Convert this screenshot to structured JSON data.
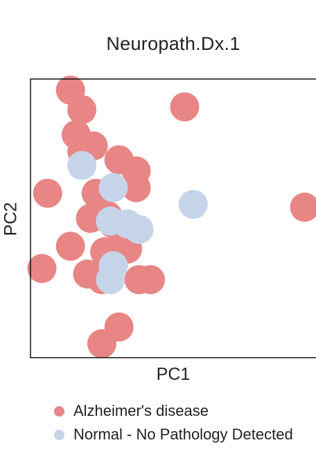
{
  "chart_data": {
    "type": "scatter",
    "title": "Neuropath.Dx.1",
    "xlabel": "PC1",
    "ylabel": "PC2",
    "xlim": [
      0,
      100
    ],
    "ylim": [
      0,
      100
    ],
    "grid": false,
    "legend_position": "bottom-left",
    "series": [
      {
        "name": "Alzheimer's disease",
        "color": "#e88585",
        "x": [
          14,
          18,
          16,
          22,
          18,
          31,
          37,
          37,
          6,
          23,
          27,
          21,
          29,
          32,
          14,
          26,
          34,
          29,
          4,
          20,
          25,
          38,
          42,
          31,
          25,
          54,
          96
        ],
        "y": [
          96,
          89,
          80,
          76,
          74,
          71,
          67,
          61,
          59,
          59,
          51,
          50,
          48,
          40,
          40,
          38,
          39,
          36,
          32,
          30,
          28,
          28,
          28,
          11,
          5,
          90,
          54
        ]
      },
      {
        "name": "Normal - No Pathology Detected",
        "color": "#c6d4ea",
        "x": [
          18,
          29,
          28,
          34,
          38,
          29,
          28,
          57
        ],
        "y": [
          69,
          61,
          49,
          48,
          46,
          33,
          28,
          55
        ]
      }
    ]
  }
}
